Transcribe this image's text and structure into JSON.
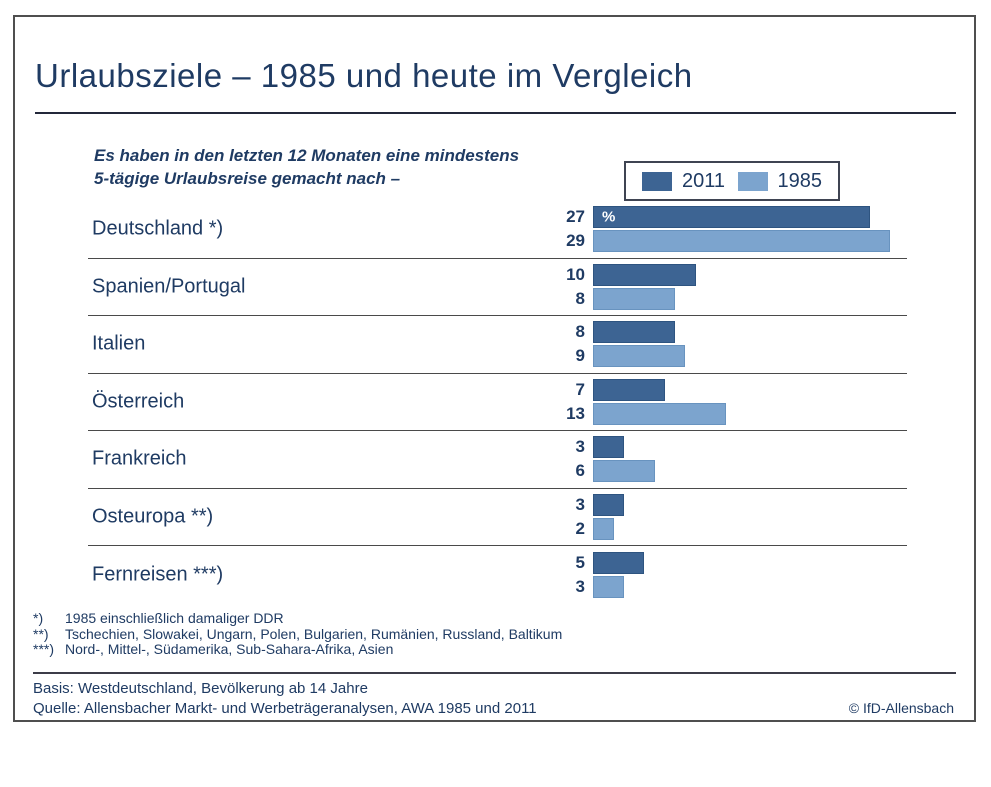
{
  "page": {
    "title": "Urlaubsziele – 1985 und heute im Vergleich",
    "subtitle_line1": "Es haben in den letzten 12 Monaten eine mindestens",
    "subtitle_line2": "5-tägige Urlaubsreise gemacht nach –"
  },
  "colors": {
    "series_2011": "#3D6493",
    "series_1985": "#7CA4CE",
    "text_navy": "#1F3B63"
  },
  "legend": {
    "items": [
      {
        "label": "2011",
        "color": "#3D6493",
        "class": "s2011"
      },
      {
        "label": "1985",
        "color": "#7CA4CE",
        "class": "s1985"
      }
    ]
  },
  "chart_data": {
    "type": "bar",
    "orientation": "horizontal",
    "unit": "%",
    "unit_label_on_first_bar": "%",
    "categories": [
      "Deutschland *)",
      "Spanien/Portugal",
      "Italien",
      "Österreich",
      "Frankreich",
      "Osteuropa **)",
      "Fernreisen ***)"
    ],
    "series": [
      {
        "name": "2011",
        "values": [
          27,
          10,
          8,
          7,
          3,
          3,
          5
        ]
      },
      {
        "name": "1985",
        "values": [
          29,
          8,
          9,
          13,
          6,
          2,
          3
        ]
      }
    ],
    "xlim": [
      0,
      29
    ],
    "grid": false,
    "legend_position": "top-right"
  },
  "footnotes": [
    {
      "marker": "*)",
      "text": "1985 einschließlich damaliger DDR"
    },
    {
      "marker": "**)",
      "text": "Tschechien, Slowakei, Ungarn, Polen, Bulgarien, Rumänien, Russland, Baltikum"
    },
    {
      "marker": "***)",
      "text": "Nord-, Mittel-, Südamerika, Sub-Sahara-Afrika, Asien"
    }
  ],
  "footer": {
    "basis": "Basis: Westdeutschland, Bevölkerung ab 14 Jahre",
    "quelle": "Quelle: Allensbacher Markt- und Werbeträgeranalysen, AWA 1985 und 2011",
    "copyright": "© IfD-Allensbach"
  }
}
